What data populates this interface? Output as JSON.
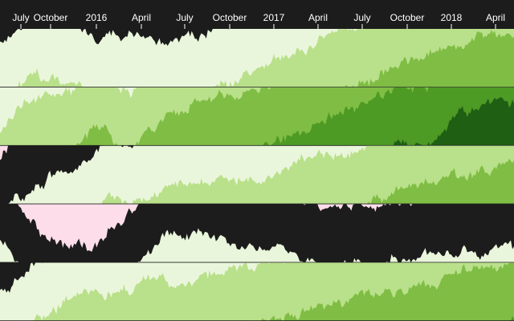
{
  "chart_data": {
    "type": "horizon",
    "x_axis": {
      "ticks": [
        "July",
        "October",
        "2016",
        "April",
        "July",
        "October",
        "2017",
        "April",
        "July",
        "October",
        "2018",
        "April"
      ],
      "range": [
        "2015-06",
        "2018-05"
      ]
    },
    "colors": {
      "positive": [
        "#eaf6dc",
        "#b9e08a",
        "#7fbd44",
        "#4d9a24",
        "#1f5f14"
      ],
      "negative": [
        "#fcdde9",
        "#f2a9c8"
      ],
      "background": "#1c1c1c",
      "axis_text": "#ffffff"
    },
    "series": [
      {
        "levels": [
          0.8,
          1.0,
          1.1,
          1.1,
          1.0,
          1.05,
          1.0,
          0.9,
          0.85,
          0.9,
          0.85,
          0.8,
          0.85,
          0.9,
          0.95,
          1.05,
          1.1,
          1.2,
          1.3,
          1.45,
          1.55,
          1.65,
          1.8,
          1.95,
          2.05,
          2.15,
          2.25,
          2.35,
          2.45,
          2.55,
          2.65,
          2.75,
          2.8,
          2.85,
          2.88,
          2.9
        ]
      },
      {
        "levels": [
          1.2,
          1.6,
          1.8,
          1.9,
          1.8,
          1.9,
          2.2,
          2.4,
          2.0,
          1.8,
          2.3,
          2.5,
          2.6,
          2.7,
          2.8,
          2.85,
          2.9,
          2.95,
          3.0,
          3.1,
          3.2,
          3.3,
          3.45,
          3.6,
          3.7,
          3.8,
          3.9,
          4.0,
          4.05,
          4.1,
          4.3,
          4.5,
          4.6,
          4.7,
          4.75,
          4.8
        ]
      },
      {
        "levels": [
          -0.2,
          0.1,
          0.3,
          0.4,
          0.5,
          0.55,
          0.8,
          1.0,
          1.1,
          1.1,
          1.15,
          1.2,
          1.25,
          1.3,
          1.35,
          1.4,
          1.45,
          1.5,
          1.55,
          1.6,
          1.65,
          1.7,
          1.8,
          1.9,
          2.0,
          2.05,
          2.1,
          2.2,
          2.3,
          2.35,
          2.4,
          2.45,
          2.5,
          2.55,
          2.6,
          2.65
        ]
      },
      {
        "levels": [
          0.4,
          0.1,
          -0.2,
          -0.5,
          -0.6,
          -0.7,
          -0.8,
          -0.6,
          -0.3,
          -0.05,
          0.15,
          0.35,
          0.45,
          0.5,
          0.5,
          0.45,
          0.35,
          0.3,
          0.15,
          0.1,
          0.05,
          0.0,
          -0.05,
          -0.05,
          0.0,
          0.05,
          0.05,
          0.1,
          0.15,
          0.2,
          0.2,
          0.25,
          0.25,
          0.2,
          0.2,
          0.2
        ]
      },
      {
        "levels": [
          0.5,
          0.7,
          0.9,
          1.1,
          1.3,
          1.35,
          1.4,
          1.45,
          1.5,
          1.55,
          1.6,
          1.65,
          1.7,
          1.75,
          1.8,
          1.85,
          1.9,
          1.95,
          2.0,
          2.05,
          2.1,
          2.15,
          2.2,
          2.3,
          2.35,
          2.4,
          2.45,
          2.55,
          2.6,
          2.65,
          2.7,
          2.8,
          2.85,
          2.9,
          2.95,
          3.0
        ]
      }
    ]
  }
}
